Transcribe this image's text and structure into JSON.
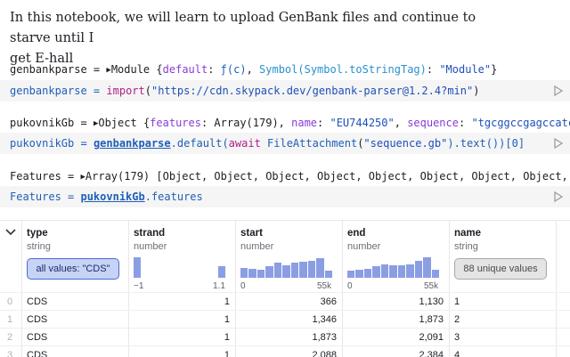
{
  "intro": {
    "line1": "In this notebook, we will learn to upload GenBank files and continue to starve until I",
    "line2": "get E-hall"
  },
  "cells": [
    {
      "output": {
        "name": "genbankparse",
        "type": "Module",
        "body_prefix": "{",
        "k1": "default",
        "v1": "ƒ(c)",
        "k2": "Symbol(Symbol.toStringTag)",
        "v2": "\"Module\"",
        "body_suffix": "}"
      },
      "code": {
        "var": "genbankparse",
        "op": " = ",
        "fn": "import",
        "arg": "\"https://cdn.skypack.dev/genbank-parser@1.2.4?min\""
      }
    },
    {
      "output": {
        "name": "pukovnikGb",
        "type": "Object",
        "k1": "features",
        "v1": "Array(179)",
        "k2": "name",
        "v2": "\"EU744250\"",
        "k3": "sequence",
        "v3": "\"tgcggccgagccatcgtgtacgg"
      },
      "code": {
        "var": "pukovnikGb",
        "op": " = ",
        "ref": "genbankparse",
        "method": ".default(",
        "kw": "await",
        "fn": "FileAttachment",
        "arg": "\"sequence.gb\"",
        "tail": ").text())[0]"
      }
    },
    {
      "output": {
        "name": "Features",
        "type": "Array(179)",
        "body": "[Object, Object, Object, Object, Object, Object, Object, Object,"
      },
      "code": {
        "var": "Features",
        "op": " = ",
        "ref": "pukovnikGb",
        "prop": ".features"
      }
    }
  ],
  "table": {
    "columns": [
      {
        "name": "type",
        "dtype": "string",
        "summary": "all values: \"CDS\""
      },
      {
        "name": "strand",
        "dtype": "number",
        "axis_min": "−1",
        "axis_max": "1.1",
        "hist": [
          0.95,
          0,
          0,
          0,
          0,
          0,
          0,
          0,
          0,
          0,
          0.55
        ]
      },
      {
        "name": "start",
        "dtype": "number",
        "axis_min": "0",
        "axis_max": "55k",
        "hist": [
          0.45,
          0.42,
          0.38,
          0.55,
          0.7,
          0.6,
          0.72,
          0.75,
          0.78,
          0.9,
          0.35
        ]
      },
      {
        "name": "end",
        "dtype": "number",
        "axis_min": "0",
        "axis_max": "55k",
        "hist": [
          0.35,
          0.38,
          0.4,
          0.55,
          0.62,
          0.58,
          0.6,
          0.62,
          0.78,
          0.95,
          0.38
        ]
      },
      {
        "name": "name",
        "dtype": "string",
        "summary": "88 unique values"
      }
    ],
    "rows": [
      {
        "idx": "0",
        "type": "CDS",
        "strand": "1",
        "start": "366",
        "end": "1,130",
        "name": "1"
      },
      {
        "idx": "1",
        "type": "CDS",
        "strand": "1",
        "start": "1,346",
        "end": "1,873",
        "name": "2"
      },
      {
        "idx": "2",
        "type": "CDS",
        "strand": "1",
        "start": "1,873",
        "end": "2,091",
        "name": "3"
      },
      {
        "idx": "3",
        "type": "CDS",
        "strand": "1",
        "start": "2,088",
        "end": "2,384",
        "name": "4"
      }
    ]
  },
  "colors": {
    "accent": "#4d6ad6",
    "hist_bar": "#8b9de3",
    "cell_bg": "#f5f5f5"
  }
}
